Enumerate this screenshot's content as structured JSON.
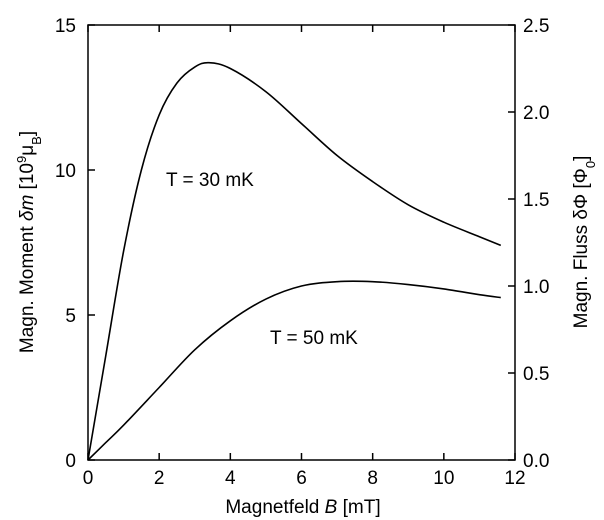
{
  "chart_data": {
    "type": "line",
    "title": "",
    "xlabel": {
      "prefix": "Magnetfeld",
      "symbol": "B",
      "unit": "[mT]"
    },
    "ylabel_left": {
      "prefix": "Magn. Moment",
      "symbol": "δm",
      "unit_open": "[10",
      "unit_exp": "9",
      "unit_mu": "μ",
      "unit_sub": "B",
      "unit_close": "]"
    },
    "ylabel_right": {
      "prefix": "Magn. Fluss",
      "symbol": "δΦ",
      "unit_open": "[Φ",
      "unit_sub": "0",
      "unit_close": "]"
    },
    "xlim": [
      0,
      12
    ],
    "ylim_left": [
      0,
      15
    ],
    "ylim_right": [
      0,
      2.5
    ],
    "x_ticks": [
      "0",
      "2",
      "4",
      "6",
      "8",
      "10",
      "12"
    ],
    "y_left_ticks": [
      "0",
      "5",
      "10",
      "15"
    ],
    "y_right_ticks": [
      "0.0",
      "0.5",
      "1.0",
      "1.5",
      "2.0",
      "2.5"
    ],
    "grid": false,
    "series": [
      {
        "name": "T = 30 mK",
        "x": [
          0,
          0.5,
          1.0,
          1.5,
          2.0,
          2.5,
          3.0,
          3.4,
          4.0,
          5.0,
          6.0,
          7.0,
          8.0,
          9.0,
          10.0,
          11.0,
          11.6
        ],
        "y": [
          0,
          3.6,
          7.2,
          10.0,
          11.9,
          13.0,
          13.55,
          13.7,
          13.5,
          12.7,
          11.6,
          10.5,
          9.6,
          8.8,
          8.2,
          7.7,
          7.4
        ]
      },
      {
        "name": "T = 50 mK",
        "x": [
          0,
          0.5,
          1.0,
          2.0,
          3.0,
          4.0,
          5.0,
          6.0,
          7.0,
          8.0,
          9.0,
          10.0,
          11.0,
          11.6
        ],
        "y": [
          0,
          0.6,
          1.2,
          2.5,
          3.8,
          4.8,
          5.55,
          6.0,
          6.15,
          6.15,
          6.05,
          5.9,
          5.7,
          5.6
        ]
      }
    ],
    "annotations": [
      {
        "text": "T = 30 mK",
        "series": 0
      },
      {
        "text": "T = 50 mK",
        "series": 1
      }
    ]
  }
}
